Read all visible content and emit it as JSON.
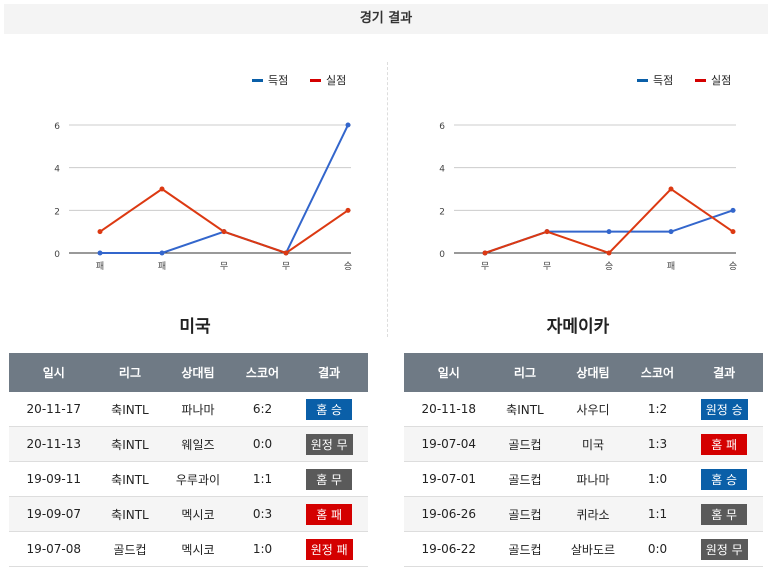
{
  "header": {
    "title": "경기 결과"
  },
  "colors": {
    "scored": "#3366cc",
    "conceded": "#dc3912",
    "win": "#0a5fa8",
    "draw": "#5a5a5a",
    "loss": "#d40000"
  },
  "charts": [
    {
      "team": "미국",
      "legend": [
        "득점",
        "실점"
      ],
      "yticks": [
        0,
        2,
        4,
        6
      ],
      "categories": [
        "패",
        "패",
        "무",
        "무",
        "승"
      ],
      "scored": [
        0,
        0,
        1,
        0,
        6
      ],
      "conceded": [
        1,
        3,
        1,
        0,
        2
      ]
    },
    {
      "team": "자메이카",
      "legend": [
        "득점",
        "실점"
      ],
      "yticks": [
        0,
        2,
        4,
        6
      ],
      "categories": [
        "무",
        "무",
        "승",
        "패",
        "승"
      ],
      "scored": [
        0,
        1,
        1,
        1,
        2
      ],
      "conceded": [
        0,
        1,
        0,
        3,
        1
      ]
    }
  ],
  "columns": [
    "일시",
    "리그",
    "상대팀",
    "스코어",
    "결과"
  ],
  "tables": [
    [
      [
        "20-11-17",
        "축INTL",
        "파나마",
        "6:2",
        "홈 승",
        "win"
      ],
      [
        "20-11-13",
        "축INTL",
        "웨일즈",
        "0:0",
        "원정 무",
        "draw"
      ],
      [
        "19-09-11",
        "축INTL",
        "우루과이",
        "1:1",
        "홈 무",
        "draw"
      ],
      [
        "19-09-07",
        "축INTL",
        "멕시코",
        "0:3",
        "홈 패",
        "loss"
      ],
      [
        "19-07-08",
        "골드컵",
        "멕시코",
        "1:0",
        "원정 패",
        "loss"
      ]
    ],
    [
      [
        "20-11-18",
        "축INTL",
        "사우디",
        "1:2",
        "원정 승",
        "win"
      ],
      [
        "19-07-04",
        "골드컵",
        "미국",
        "1:3",
        "홈 패",
        "loss"
      ],
      [
        "19-07-01",
        "골드컵",
        "파나마",
        "1:0",
        "홈 승",
        "win"
      ],
      [
        "19-06-26",
        "골드컵",
        "퀴라소",
        "1:1",
        "홈 무",
        "draw"
      ],
      [
        "19-06-22",
        "골드컵",
        "살바도르",
        "0:0",
        "원정 무",
        "draw"
      ]
    ]
  ]
}
